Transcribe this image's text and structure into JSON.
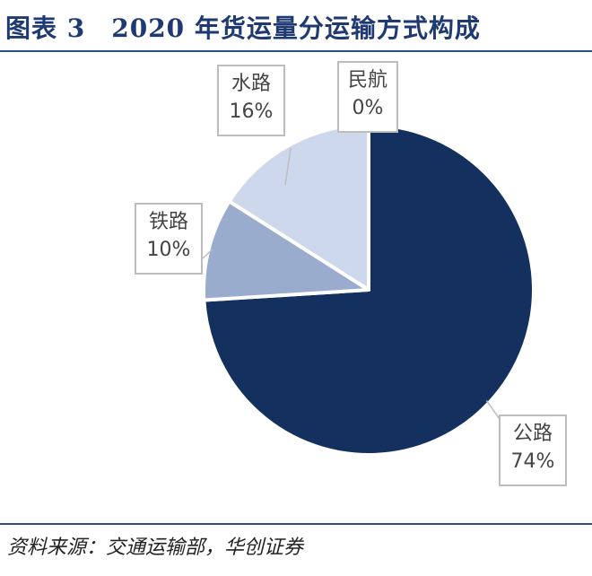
{
  "header": {
    "title": "图表 3　2020 年货运量分运输方式构成"
  },
  "chart_data": {
    "type": "pie",
    "title": "图表 3　2020 年货运量分运输方式构成",
    "start_angle_deg": 0,
    "direction": "clockwise",
    "slices": [
      {
        "label": "公路",
        "value": 74,
        "value_label": "74%",
        "color": "#14305e"
      },
      {
        "label": "铁路",
        "value": 10,
        "value_label": "10%",
        "color": "#9aaccd"
      },
      {
        "label": "水路",
        "value": 16,
        "value_label": "16%",
        "color": "#cdd8ec"
      },
      {
        "label": "民航",
        "value": 0,
        "value_label": "0%",
        "color": "#e6ecf6"
      }
    ],
    "legend": "none"
  },
  "footer": {
    "source": "资料来源：交通运输部，华创证券"
  }
}
